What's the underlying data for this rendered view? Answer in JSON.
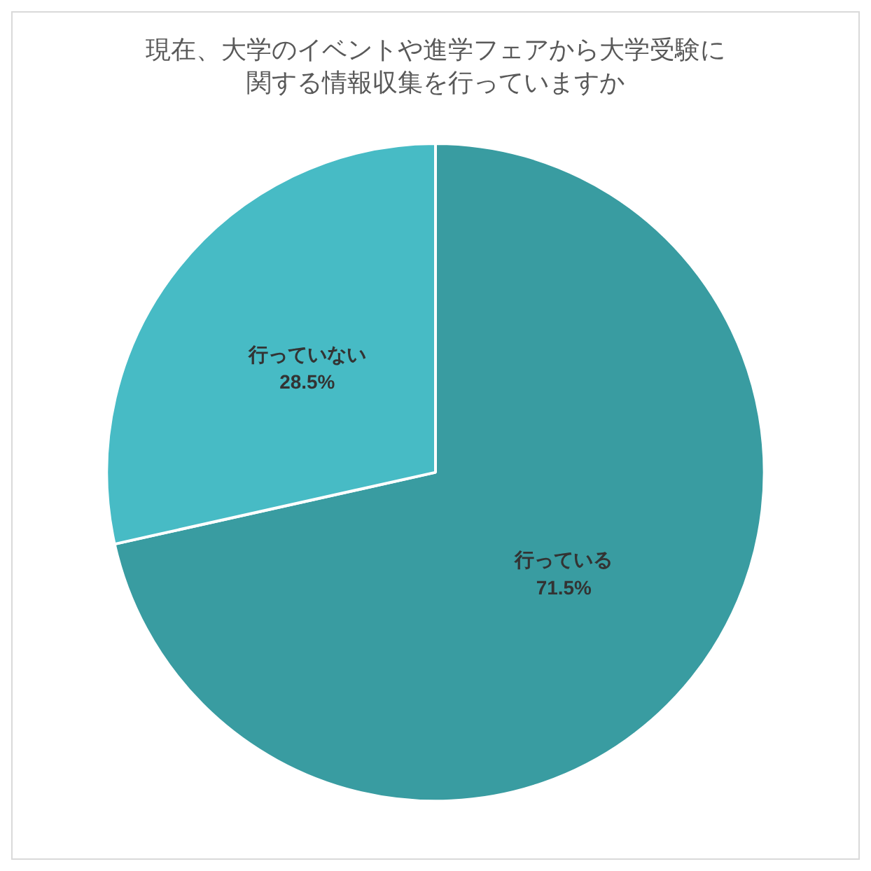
{
  "chart_data": {
    "type": "pie",
    "title": "現在、大学のイベントや進学フェアから大学受験に関する情報収集を行っていますか",
    "categories": [
      "行っている",
      "行っていない"
    ],
    "values": [
      71.5,
      28.5
    ],
    "colors": [
      "#399ca1",
      "#47bbc5"
    ],
    "value_labels": [
      "71.5%",
      "28.5%"
    ],
    "legend": false
  }
}
